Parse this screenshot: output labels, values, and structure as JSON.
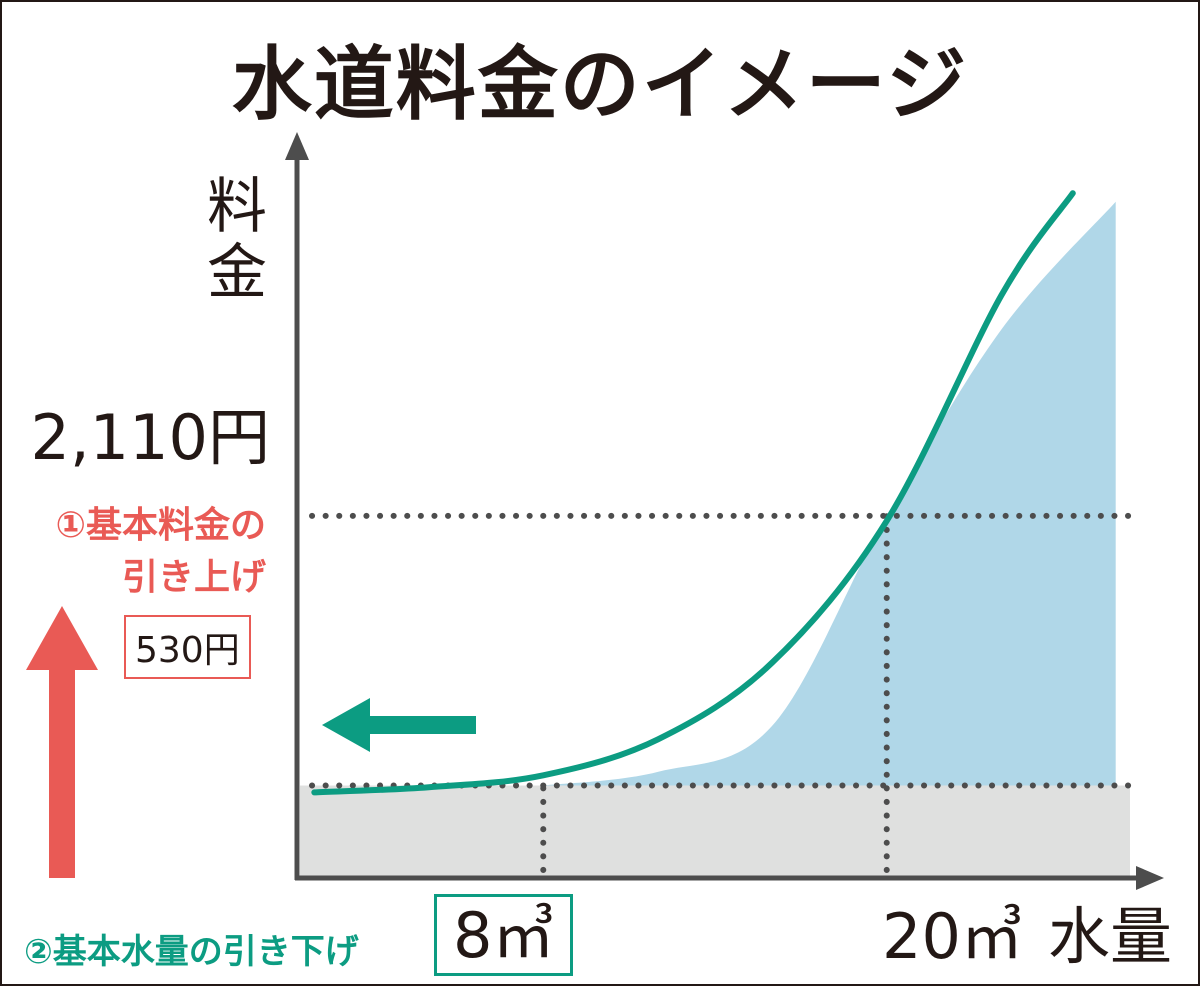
{
  "chart_data": {
    "type": "line",
    "title": "水道料金のイメージ",
    "ylabel": "料金",
    "xlabel": "水量",
    "y_tick_labels": [
      "2,110円"
    ],
    "x_tick_labels": [
      "8㎥",
      "20㎥"
    ],
    "series": [
      {
        "color": "#0c9c82",
        "x": [
          0,
          4,
          8,
          12,
          16,
          20,
          24,
          26.5
        ],
        "y": [
          490,
          520,
          590,
          800,
          1250,
          2080,
          3400,
          4000
        ]
      },
      {
        "color": "#b0d7e8",
        "fill": true,
        "x": [
          8,
          12,
          16,
          20,
          24,
          28
        ],
        "y": [
          530,
          610,
          880,
          2110,
          3200,
          3950
        ]
      }
    ],
    "reference_lines": [
      {
        "axis": "y",
        "value": 530
      },
      {
        "axis": "y",
        "value": 2110
      },
      {
        "axis": "x",
        "value": 8
      },
      {
        "axis": "x",
        "value": 20
      }
    ],
    "base_region_color": "#dfe0df",
    "xlim": [
      -0.5,
      28.5
    ],
    "ylim": [
      0,
      4300
    ],
    "grid": false,
    "legend": "none"
  },
  "annotations": {
    "raise_base_fee": "①基本料金の\n引き上げ",
    "lower_base_volume": "②基本水量の引き下げ",
    "old_base_fee": "530円",
    "raise_color": "#e95a55",
    "lower_color": "#0c9c82"
  }
}
